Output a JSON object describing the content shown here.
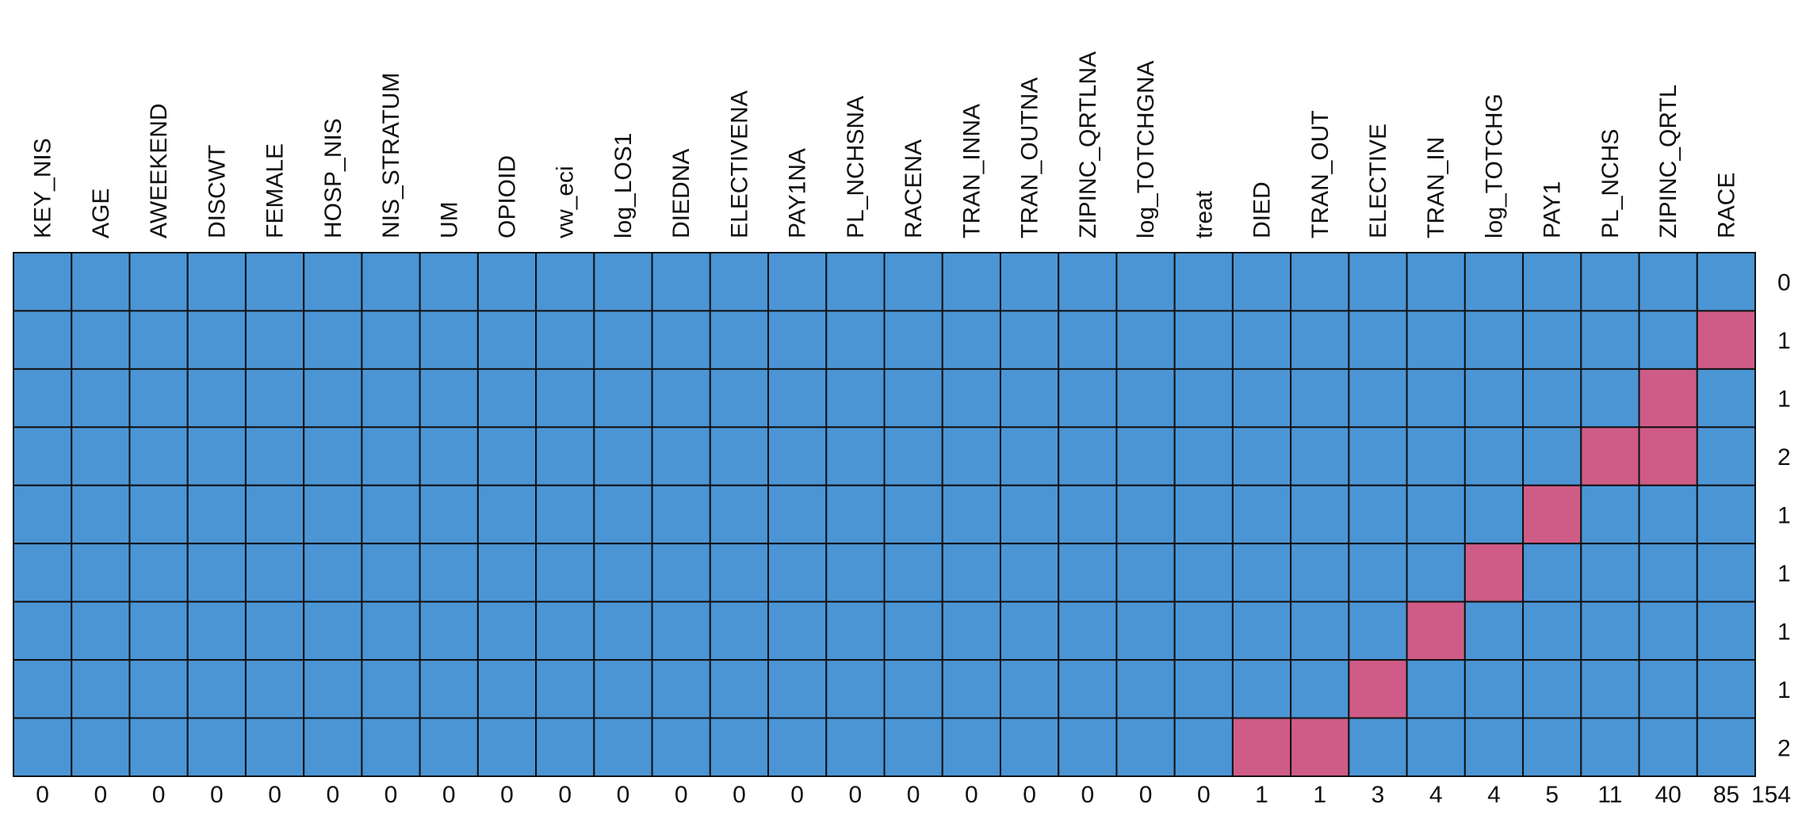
{
  "chart_data": {
    "type": "missing_pattern",
    "columns": [
      "KEY_NIS",
      "AGE",
      "AWEEKEND",
      "DISCWT",
      "FEMALE",
      "HOSP_NIS",
      "NIS_STRATUM",
      "UM",
      "OPIOID",
      "vw_eci",
      "log_LOS1",
      "DIEDNA",
      "ELECTIVENA",
      "PAY1NA",
      "PL_NCHSNA",
      "RACENA",
      "TRAN_INNA",
      "TRAN_OUTNA",
      "ZIPINC_QRTLNA",
      "log_TOTCHGNA",
      "treat",
      "DIED",
      "TRAN_OUT",
      "ELECTIVE",
      "TRAN_IN",
      "log_TOTCHG",
      "PAY1",
      "PL_NCHS",
      "ZIPINC_QRTL",
      "RACE"
    ],
    "patterns": [
      [
        1,
        1,
        1,
        1,
        1,
        1,
        1,
        1,
        1,
        1,
        1,
        1,
        1,
        1,
        1,
        1,
        1,
        1,
        1,
        1,
        1,
        1,
        1,
        1,
        1,
        1,
        1,
        1,
        1,
        1
      ],
      [
        1,
        1,
        1,
        1,
        1,
        1,
        1,
        1,
        1,
        1,
        1,
        1,
        1,
        1,
        1,
        1,
        1,
        1,
        1,
        1,
        1,
        1,
        1,
        1,
        1,
        1,
        1,
        1,
        1,
        0
      ],
      [
        1,
        1,
        1,
        1,
        1,
        1,
        1,
        1,
        1,
        1,
        1,
        1,
        1,
        1,
        1,
        1,
        1,
        1,
        1,
        1,
        1,
        1,
        1,
        1,
        1,
        1,
        1,
        1,
        0,
        1
      ],
      [
        1,
        1,
        1,
        1,
        1,
        1,
        1,
        1,
        1,
        1,
        1,
        1,
        1,
        1,
        1,
        1,
        1,
        1,
        1,
        1,
        1,
        1,
        1,
        1,
        1,
        1,
        1,
        0,
        0,
        1
      ],
      [
        1,
        1,
        1,
        1,
        1,
        1,
        1,
        1,
        1,
        1,
        1,
        1,
        1,
        1,
        1,
        1,
        1,
        1,
        1,
        1,
        1,
        1,
        1,
        1,
        1,
        1,
        0,
        1,
        1,
        1
      ],
      [
        1,
        1,
        1,
        1,
        1,
        1,
        1,
        1,
        1,
        1,
        1,
        1,
        1,
        1,
        1,
        1,
        1,
        1,
        1,
        1,
        1,
        1,
        1,
        1,
        1,
        0,
        1,
        1,
        1,
        1
      ],
      [
        1,
        1,
        1,
        1,
        1,
        1,
        1,
        1,
        1,
        1,
        1,
        1,
        1,
        1,
        1,
        1,
        1,
        1,
        1,
        1,
        1,
        1,
        1,
        1,
        0,
        1,
        1,
        1,
        1,
        1
      ],
      [
        1,
        1,
        1,
        1,
        1,
        1,
        1,
        1,
        1,
        1,
        1,
        1,
        1,
        1,
        1,
        1,
        1,
        1,
        1,
        1,
        1,
        1,
        1,
        0,
        1,
        1,
        1,
        1,
        1,
        1
      ],
      [
        1,
        1,
        1,
        1,
        1,
        1,
        1,
        1,
        1,
        1,
        1,
        1,
        1,
        1,
        1,
        1,
        1,
        1,
        1,
        1,
        1,
        0,
        0,
        1,
        1,
        1,
        1,
        1,
        1,
        1
      ]
    ],
    "pattern_missing": [
      0,
      1,
      1,
      2,
      1,
      1,
      1,
      1,
      2
    ],
    "column_missing": [
      0,
      0,
      0,
      0,
      0,
      0,
      0,
      0,
      0,
      0,
      0,
      0,
      0,
      0,
      0,
      0,
      0,
      0,
      0,
      0,
      0,
      1,
      1,
      3,
      4,
      4,
      5,
      11,
      40,
      85
    ],
    "total_missing": 154,
    "colors": {
      "observed": "#4b95d5",
      "missing": "#cf5c86"
    }
  }
}
